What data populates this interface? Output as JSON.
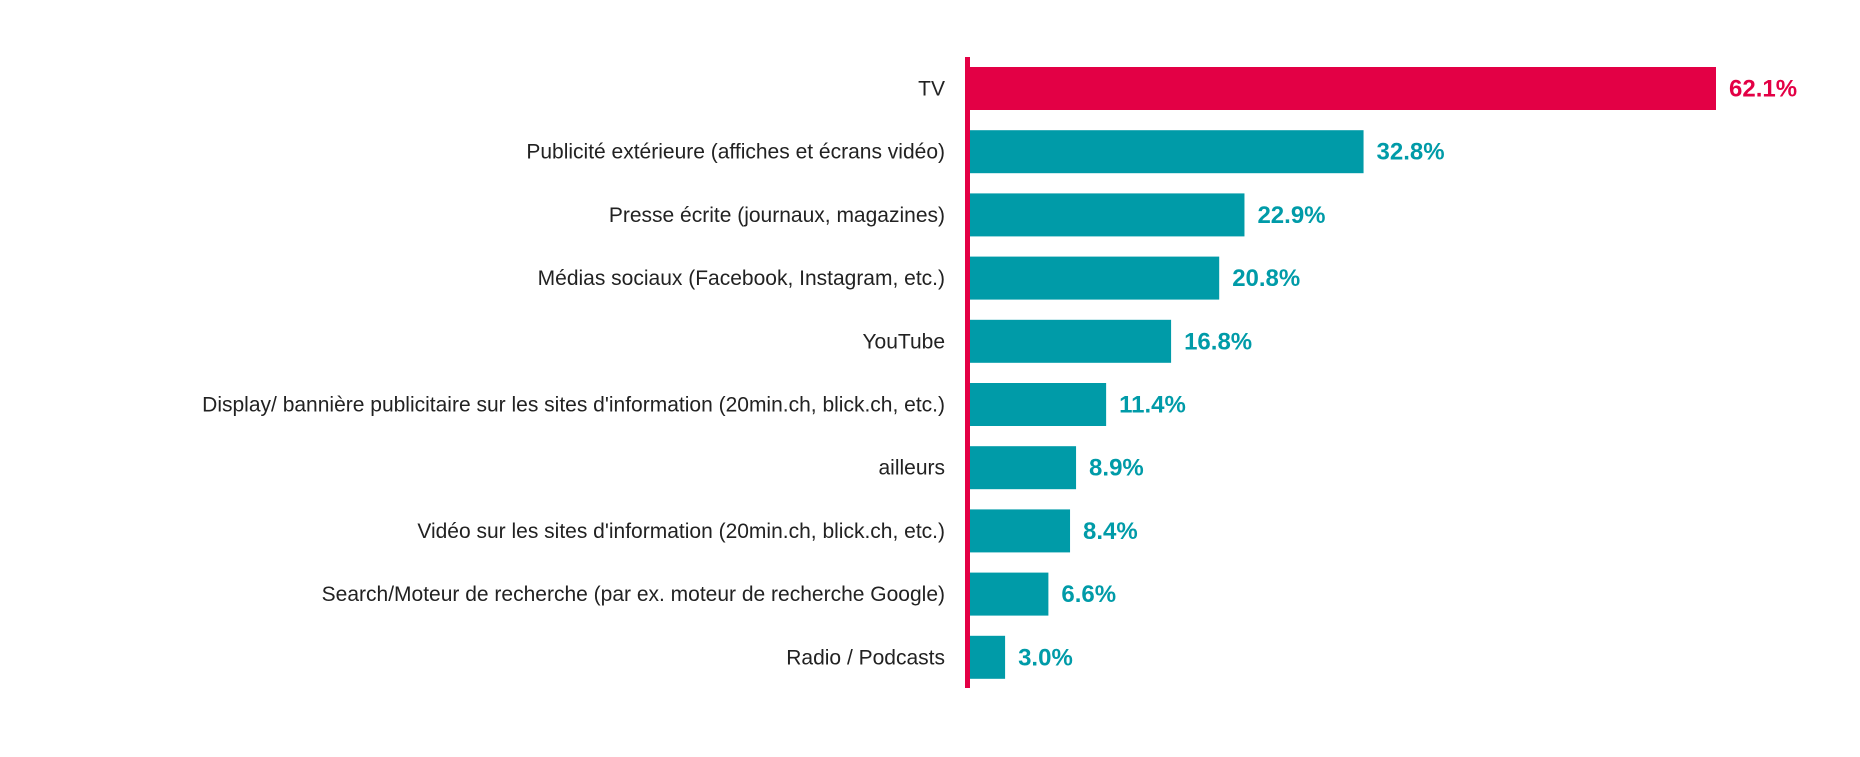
{
  "chart_data": {
    "type": "bar",
    "orientation": "horizontal",
    "title": "",
    "xlabel": "",
    "ylabel": "",
    "xlim": [
      0,
      62.1
    ],
    "grid": false,
    "categories": [
      "TV",
      "Publicité extérieure (affiches et écrans vidéo)",
      "Presse écrite (journaux, magazines)",
      "Médias sociaux (Facebook, Instagram, etc.)",
      "YouTube",
      "Display/ bannière publicitaire sur les sites d'information (20min.ch, blick.ch, etc.)",
      "ailleurs",
      "Vidéo sur les sites d'information (20min.ch, blick.ch, etc.)",
      "Search/Moteur de recherche (par ex. moteur de recherche Google)",
      "Radio / Podcasts"
    ],
    "values": [
      62.1,
      32.8,
      22.9,
      20.8,
      16.8,
      11.4,
      8.9,
      8.4,
      6.6,
      3.0
    ],
    "value_labels": [
      "62.1%",
      "32.8%",
      "22.9%",
      "20.8%",
      "16.8%",
      "11.4%",
      "8.9%",
      "8.4%",
      "6.6%",
      "3.0%"
    ],
    "colors": {
      "highlight": "#e30045",
      "default": "#009ba8",
      "axis": "#e30045"
    }
  }
}
